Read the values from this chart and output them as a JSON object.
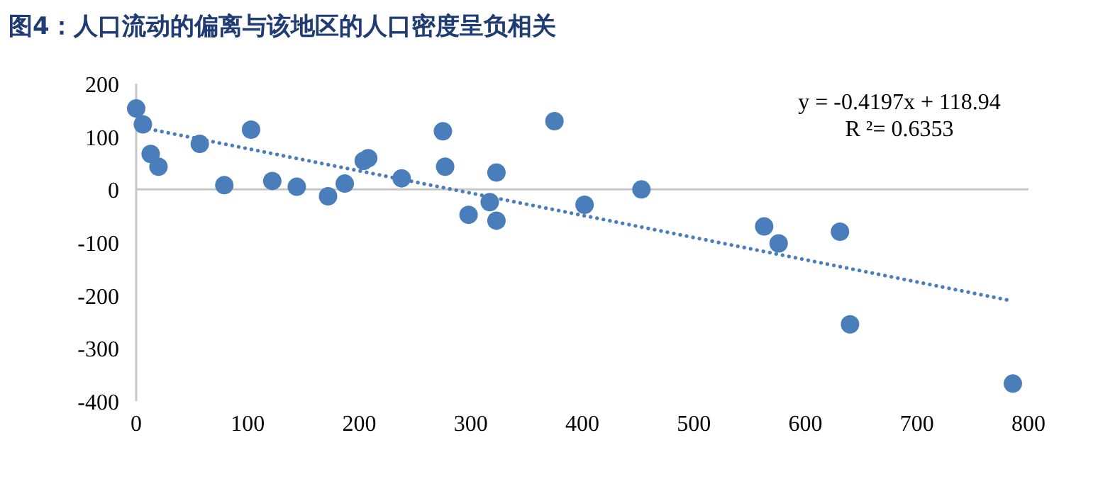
{
  "chart_data": {
    "type": "scatter",
    "title": "图4：人口流动的偏离与该地区的人口密度呈负相关",
    "xlim": [
      0,
      800
    ],
    "xticks": [
      0,
      100,
      200,
      300,
      400,
      500,
      600,
      700,
      800
    ],
    "ylim": [
      -400,
      200
    ],
    "yticks": [
      -400,
      -300,
      -200,
      -100,
      0,
      100,
      200
    ],
    "marker": "circle",
    "annotations": [
      "y = -0.4197x + 118.94",
      "R ²= 0.6353"
    ],
    "series": [
      {
        "type": "scatter",
        "color": "#4a7ebb",
        "x": [
          0,
          6,
          13,
          20,
          57,
          79,
          103,
          122,
          144,
          172,
          187,
          204,
          208,
          238,
          275,
          277,
          323,
          298,
          317,
          323,
          375,
          402,
          453,
          563,
          576,
          631,
          640,
          786
        ],
        "values": [
          153,
          123,
          67,
          43,
          86,
          8,
          113,
          16,
          5,
          -13,
          11,
          54,
          59,
          21,
          110,
          43,
          32,
          -48,
          -24,
          -59,
          129,
          -29,
          0,
          -70,
          -102,
          -80,
          -255,
          -367
        ]
      },
      {
        "type": "line",
        "marker": "none",
        "color": "#4a7ebb",
        "line_style": "dotted",
        "x": [
          0,
          786
        ],
        "values": [
          119,
          -211
        ]
      }
    ]
  }
}
